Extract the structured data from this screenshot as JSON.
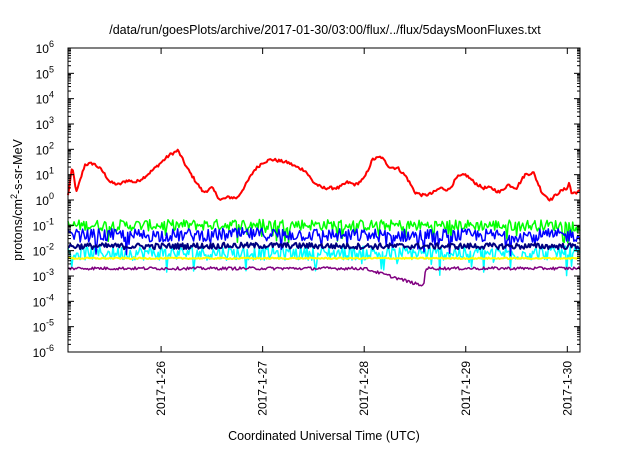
{
  "chart_data": {
    "type": "line",
    "title": "/data/run/goesPlots/archive/2017-01-30/03:00/flux/../flux/5daysMoonFluxes.txt",
    "xlabel": "Coordinated Universal Time (UTC)",
    "ylabel": {
      "base": "protons/cm",
      "sup": "2",
      "rest": "-s-sr-MeV"
    },
    "yscale": "log",
    "ylim": [
      1e-06,
      1000000.0
    ],
    "xlim": [
      "2017-01-25 02:00",
      "2017-01-30 03:00"
    ],
    "grid": false,
    "yticks": [
      {
        "value": 1e-06,
        "base": "10",
        "exp": "-6"
      },
      {
        "value": 1e-05,
        "base": "10",
        "exp": "-5"
      },
      {
        "value": 0.0001,
        "base": "10",
        "exp": "-4"
      },
      {
        "value": 0.001,
        "base": "10",
        "exp": "-3"
      },
      {
        "value": 0.01,
        "base": "10",
        "exp": "-2"
      },
      {
        "value": 0.1,
        "base": "10",
        "exp": "-1"
      },
      {
        "value": 1,
        "base": "10",
        "exp": "0"
      },
      {
        "value": 10,
        "base": "10",
        "exp": "1"
      },
      {
        "value": 100,
        "base": "10",
        "exp": "2"
      },
      {
        "value": 1000,
        "base": "10",
        "exp": "3"
      },
      {
        "value": 10000,
        "base": "10",
        "exp": "4"
      },
      {
        "value": 100000,
        "base": "10",
        "exp": "5"
      },
      {
        "value": 1000000,
        "base": "10",
        "exp": "6"
      }
    ],
    "xticks": [
      {
        "value": "2017-01-26 00:00",
        "label": "2017-1-26"
      },
      {
        "value": "2017-01-27 00:00",
        "label": "2017-1-27"
      },
      {
        "value": "2017-01-28 00:00",
        "label": "2017-1-28"
      },
      {
        "value": "2017-01-29 00:00",
        "label": "2017-1-29"
      },
      {
        "value": "2017-01-30 00:00",
        "label": "2017-1-30"
      }
    ],
    "series": [
      {
        "color": "#ff0000",
        "width": 2,
        "noise": 0.06,
        "points": [
          [
            "2017-01-25 02:00",
            1.5
          ],
          [
            "2017-01-25 03:00",
            20
          ],
          [
            "2017-01-25 04:00",
            2
          ],
          [
            "2017-01-25 06:00",
            25
          ],
          [
            "2017-01-25 08:00",
            28
          ],
          [
            "2017-01-25 10:00",
            15
          ],
          [
            "2017-01-25 12:00",
            5
          ],
          [
            "2017-01-25 14:00",
            4
          ],
          [
            "2017-01-25 16:00",
            6
          ],
          [
            "2017-01-25 18:00",
            5
          ],
          [
            "2017-01-25 20:00",
            8
          ],
          [
            "2017-01-25 22:00",
            15
          ],
          [
            "2017-01-25 23:59",
            30
          ],
          [
            "2017-01-26 02:00",
            60
          ],
          [
            "2017-01-26 04:00",
            90
          ],
          [
            "2017-01-26 06:00",
            20
          ],
          [
            "2017-01-26 08:00",
            6
          ],
          [
            "2017-01-26 10:00",
            2
          ],
          [
            "2017-01-26 12:00",
            3
          ],
          [
            "2017-01-26 14:00",
            1
          ],
          [
            "2017-01-26 16:00",
            1.3
          ],
          [
            "2017-01-26 18:00",
            1.2
          ],
          [
            "2017-01-26 20:00",
            4
          ],
          [
            "2017-01-26 22:00",
            15
          ],
          [
            "2017-01-26 23:59",
            30
          ],
          [
            "2017-01-27 02:00",
            40
          ],
          [
            "2017-01-27 04:00",
            35
          ],
          [
            "2017-01-27 06:00",
            30
          ],
          [
            "2017-01-27 08:00",
            20
          ],
          [
            "2017-01-27 10:00",
            15
          ],
          [
            "2017-01-27 12:00",
            5
          ],
          [
            "2017-01-27 14:00",
            3
          ],
          [
            "2017-01-27 16:00",
            3
          ],
          [
            "2017-01-27 18:00",
            3
          ],
          [
            "2017-01-27 20:00",
            5
          ],
          [
            "2017-01-27 22:00",
            4
          ],
          [
            "2017-01-27 23:59",
            7
          ],
          [
            "2017-01-28 02:00",
            40
          ],
          [
            "2017-01-28 04:00",
            50
          ],
          [
            "2017-01-28 06:00",
            20
          ],
          [
            "2017-01-28 08:00",
            18
          ],
          [
            "2017-01-28 10:00",
            8
          ],
          [
            "2017-01-28 12:00",
            2
          ],
          [
            "2017-01-28 14:00",
            1.5
          ],
          [
            "2017-01-28 16:00",
            1.8
          ],
          [
            "2017-01-28 18:00",
            3
          ],
          [
            "2017-01-28 20:00",
            2.5
          ],
          [
            "2017-01-28 22:00",
            8
          ],
          [
            "2017-01-28 23:59",
            10
          ],
          [
            "2017-01-29 02:00",
            5
          ],
          [
            "2017-01-29 04:00",
            3
          ],
          [
            "2017-01-29 06:00",
            3
          ],
          [
            "2017-01-29 08:00",
            2
          ],
          [
            "2017-01-29 10:00",
            4
          ],
          [
            "2017-01-29 12:00",
            3
          ],
          [
            "2017-01-29 14:00",
            10
          ],
          [
            "2017-01-29 16:00",
            12
          ],
          [
            "2017-01-29 18:00",
            2
          ],
          [
            "2017-01-29 20:00",
            1
          ],
          [
            "2017-01-29 22:00",
            2
          ],
          [
            "2017-01-29 23:59",
            3
          ],
          [
            "2017-01-30 00:30",
            5
          ],
          [
            "2017-01-30 01:00",
            1.8
          ],
          [
            "2017-01-30 02:00",
            2
          ],
          [
            "2017-01-30 03:00",
            2.2
          ]
        ]
      },
      {
        "color": "#00ff00",
        "width": 1.5,
        "noise": 0.22,
        "points": [
          [
            "2017-01-25 02:00",
            0.1
          ],
          [
            "2017-01-26 00:00",
            0.1
          ],
          [
            "2017-01-27 00:00",
            0.11
          ],
          [
            "2017-01-28 00:00",
            0.1
          ],
          [
            "2017-01-29 00:00",
            0.1
          ],
          [
            "2017-01-30 03:00",
            0.1
          ]
        ]
      },
      {
        "color": "#00ffff",
        "width": 1.5,
        "noise": 0.28,
        "points": [
          [
            "2017-01-25 02:00",
            0.008
          ],
          [
            "2017-01-26 00:00",
            0.008
          ],
          [
            "2017-01-27 00:00",
            0.008
          ],
          [
            "2017-01-28 00:00",
            0.008
          ],
          [
            "2017-01-29 00:00",
            0.008
          ],
          [
            "2017-01-30 03:00",
            0.008
          ]
        ]
      },
      {
        "color": "#0000ff",
        "width": 1.5,
        "noise": 0.26,
        "points": [
          [
            "2017-01-25 02:00",
            0.04
          ],
          [
            "2017-01-26 00:00",
            0.04
          ],
          [
            "2017-01-27 00:00",
            0.045
          ],
          [
            "2017-01-28 00:00",
            0.04
          ],
          [
            "2017-01-29 00:00",
            0.04
          ],
          [
            "2017-01-30 03:00",
            0.04
          ]
        ]
      },
      {
        "color": "#000080",
        "width": 2,
        "noise": 0.12,
        "points": [
          [
            "2017-01-25 02:00",
            0.015
          ],
          [
            "2017-01-26 00:00",
            0.015
          ],
          [
            "2017-01-27 00:00",
            0.016
          ],
          [
            "2017-01-28 00:00",
            0.015
          ],
          [
            "2017-01-29 00:00",
            0.015
          ],
          [
            "2017-01-30 03:00",
            0.015
          ]
        ]
      },
      {
        "color": "#ffff00",
        "width": 2,
        "noise": 0.03,
        "points": [
          [
            "2017-01-25 02:00",
            0.005
          ],
          [
            "2017-01-26 00:00",
            0.005
          ],
          [
            "2017-01-27 00:00",
            0.005
          ],
          [
            "2017-01-28 00:00",
            0.005
          ],
          [
            "2017-01-29 00:00",
            0.005
          ],
          [
            "2017-01-30 03:00",
            0.005
          ]
        ]
      },
      {
        "color": "#800080",
        "width": 1.5,
        "noise": 0.06,
        "points": [
          [
            "2017-01-25 02:00",
            0.002
          ],
          [
            "2017-01-26 00:00",
            0.002
          ],
          [
            "2017-01-27 00:00",
            0.002
          ],
          [
            "2017-01-28 00:00",
            0.002
          ],
          [
            "2017-01-28 14:00",
            0.0004
          ],
          [
            "2017-01-28 14:30",
            0.002
          ],
          [
            "2017-01-29 00:00",
            0.002
          ],
          [
            "2017-01-30 03:00",
            0.002
          ]
        ]
      }
    ]
  }
}
